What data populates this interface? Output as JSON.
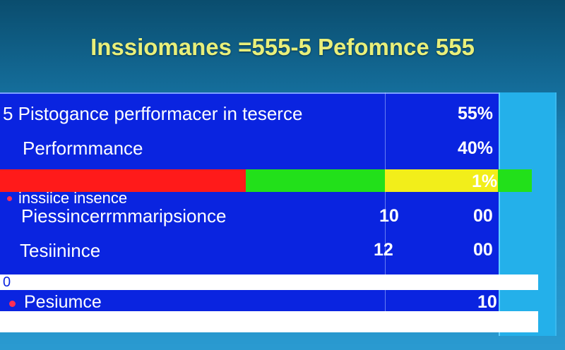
{
  "title": "Inssiomanes =555-5 Pefomnce 555",
  "rows": {
    "row1_label": "5 Pistogance perfformacer in teserce",
    "row1_value": "55%",
    "row2_label": "Performmance",
    "row2_value": "40%",
    "bar_value": "1%",
    "row3_sub": "inssiice insence",
    "row4_label": "Piessincerrmmaripsionce",
    "row4_mid": "10",
    "row4_value": "00",
    "row5_label": "Tesiinince",
    "row5_mid": "12",
    "row5_value": "00",
    "row6_left": "0",
    "row7_label": "Pesiumce",
    "row7_value": "10"
  },
  "colors": {
    "panel": "#0a24e0",
    "red": "#ff1a1a",
    "green": "#22e01a",
    "yellow": "#f2ee1a",
    "title": "#e8ef7a",
    "dot": "#ff2d55"
  },
  "chart_data": {
    "type": "bar",
    "categories": [
      "5 Pistogance perfformacer in teserce",
      "Performmance",
      "Piessincerrmmaripsionce",
      "Tesiinince",
      "Pesiumce"
    ],
    "series": [
      {
        "values": [
          55,
          40,
          0,
          0,
          10
        ]
      }
    ],
    "title": "Inssiomanes =555-5 Pefomnce 555",
    "xlabel": "",
    "ylabel": ""
  }
}
